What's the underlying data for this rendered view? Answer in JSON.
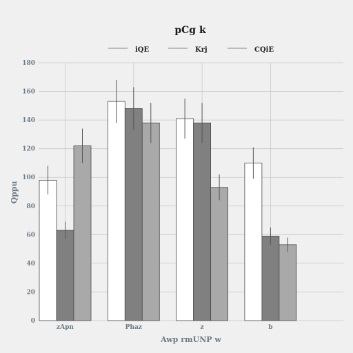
{
  "chart_data": {
    "type": "bar",
    "title": "pCg k",
    "xlabel": "Awp rmUNP w",
    "ylabel": "Qppu",
    "categories": [
      "zApn",
      "Phaz",
      "z",
      "b"
    ],
    "ylim": [
      0,
      180
    ],
    "yticks": [
      0,
      20,
      40,
      60,
      80,
      100,
      120,
      140,
      160,
      180
    ],
    "grid": true,
    "legend_position": "top-center",
    "series": [
      {
        "name": "iQE",
        "color": "#ffffff",
        "values": [
          98,
          153,
          141,
          110
        ],
        "errors": [
          10,
          15,
          14,
          11
        ]
      },
      {
        "name": "Krj",
        "color": "#808080",
        "values": [
          63,
          148,
          138,
          59
        ],
        "errors": [
          6,
          15,
          14,
          6
        ]
      },
      {
        "name": "CQiE",
        "color": "#a9a9a9",
        "values": [
          122,
          138,
          93,
          53
        ],
        "errors": [
          12,
          14,
          9,
          5
        ]
      }
    ]
  }
}
